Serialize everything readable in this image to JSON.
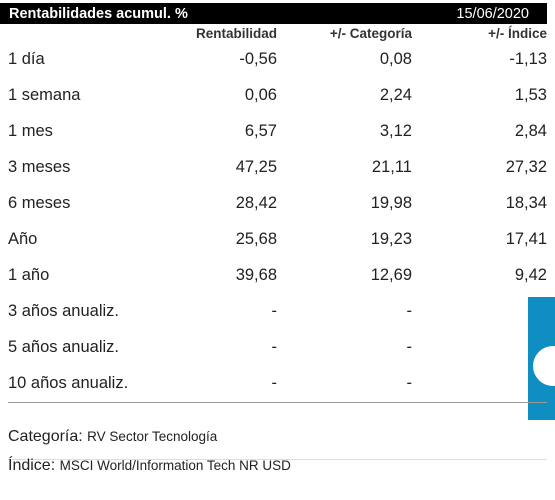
{
  "header": {
    "title": "Rentabilidades acumul. %",
    "date": "15/06/2020"
  },
  "columns": [
    "Rentabilidad",
    "+/- Categoría",
    "+/- Índice"
  ],
  "rows": [
    {
      "label": "1 día",
      "values": [
        "-0,56",
        "0,08",
        "-1,13"
      ]
    },
    {
      "label": "1 semana",
      "values": [
        "0,06",
        "2,24",
        "1,53"
      ]
    },
    {
      "label": "1 mes",
      "values": [
        "6,57",
        "3,12",
        "2,84"
      ]
    },
    {
      "label": "3 meses",
      "values": [
        "47,25",
        "21,11",
        "27,32"
      ]
    },
    {
      "label": "6 meses",
      "values": [
        "28,42",
        "19,98",
        "18,34"
      ]
    },
    {
      "label": "Año",
      "values": [
        "25,68",
        "19,23",
        "17,41"
      ]
    },
    {
      "label": "1 año",
      "values": [
        "39,68",
        "12,69",
        "9,42"
      ]
    },
    {
      "label": "3 años anualiz.",
      "values": [
        "-",
        "-",
        ""
      ]
    },
    {
      "label": "5 años anualiz.",
      "values": [
        "-",
        "-",
        ""
      ]
    },
    {
      "label": "10 años anualiz.",
      "values": [
        "-",
        "-",
        ""
      ]
    }
  ],
  "footer": {
    "category_key": "Categoría:",
    "category_value": "RV Sector Tecnología",
    "index_key": "Índice:",
    "index_value": "MSCI World/Information Tech NR USD"
  },
  "colors": {
    "header_bg": "#000000",
    "accent_blue": "#0f8fc1"
  }
}
